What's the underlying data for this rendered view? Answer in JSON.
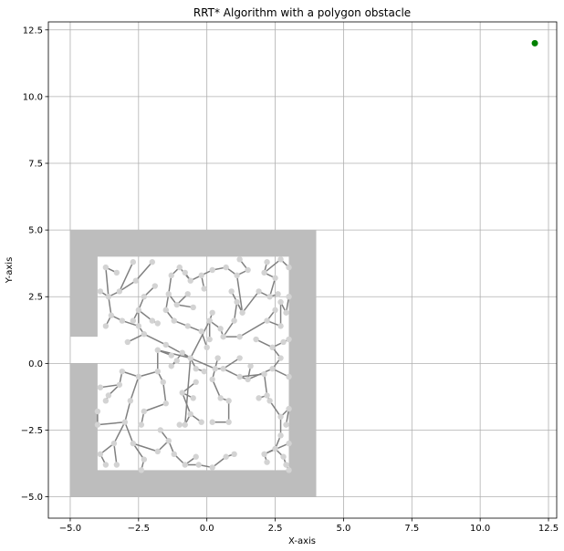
{
  "chart_data": {
    "type": "scatter",
    "title": "RRT* Algorithm with a polygon obstacle",
    "xlabel": "X-axis",
    "ylabel": "Y-axis",
    "xlim": [
      -5.8,
      12.8
    ],
    "ylim": [
      -5.8,
      12.8
    ],
    "xticks": [
      -5.0,
      -2.5,
      0.0,
      2.5,
      5.0,
      7.5,
      10.0,
      12.5
    ],
    "yticks": [
      -5.0,
      -2.5,
      0.0,
      2.5,
      5.0,
      7.5,
      10.0,
      12.5
    ],
    "xtick_labels": [
      "−5.0",
      "−2.5",
      "0.0",
      "2.5",
      "5.0",
      "7.5",
      "10.0",
      "12.5"
    ],
    "ytick_labels": [
      "−5.0",
      "−2.5",
      "0.0",
      "2.5",
      "5.0",
      "7.5",
      "10.0",
      "12.5"
    ],
    "grid": true,
    "colors": {
      "obstacle": "#bdbdbd",
      "edge": "#808080",
      "node": "#d3d3d3",
      "goal": "#008000",
      "grid": "#b0b0b0"
    },
    "obstacle": {
      "outer": [
        [
          -5,
          -5
        ],
        [
          4,
          -5
        ],
        [
          4,
          5
        ],
        [
          -5,
          5
        ]
      ],
      "inner": [
        [
          -4,
          -4
        ],
        [
          3,
          -4
        ],
        [
          3,
          4
        ],
        [
          -4,
          4
        ]
      ],
      "notch": [
        [
          -5,
          0
        ],
        [
          -4,
          0
        ],
        [
          -4,
          1
        ],
        [
          -5,
          1
        ]
      ]
    },
    "goal": [
      12,
      12
    ],
    "nodes": [
      [
        -0.6,
        0.2
      ],
      [
        -1.5,
        0.7
      ],
      [
        -2.3,
        1.1
      ],
      [
        -2.9,
        0.8
      ],
      [
        -2.5,
        1.4
      ],
      [
        -3.1,
        1.6
      ],
      [
        -3.5,
        1.8
      ],
      [
        -3.7,
        1.4
      ],
      [
        -3.6,
        2.5
      ],
      [
        -3.9,
        2.7
      ],
      [
        -3.7,
        3.6
      ],
      [
        -3.2,
        2.7
      ],
      [
        -2.7,
        3.8
      ],
      [
        -2.6,
        3.1
      ],
      [
        -2.0,
        3.8
      ],
      [
        -2.5,
        2.0
      ],
      [
        -2.3,
        2.5
      ],
      [
        -1.9,
        2.9
      ],
      [
        -2.7,
        1.6
      ],
      [
        -2.0,
        1.6
      ],
      [
        -1.8,
        1.5
      ],
      [
        -1.8,
        0.5
      ],
      [
        -1.3,
        0.3
      ],
      [
        -1.8,
        -0.3
      ],
      [
        -1.6,
        -0.7
      ],
      [
        -1.5,
        -1.5
      ],
      [
        -2.3,
        -1.8
      ],
      [
        -2.4,
        -2.3
      ],
      [
        -2.5,
        -0.5
      ],
      [
        -3.1,
        -0.3
      ],
      [
        -3.2,
        -0.8
      ],
      [
        -3.6,
        -1.2
      ],
      [
        -3.7,
        -1.4
      ],
      [
        -3.9,
        -0.9
      ],
      [
        -2.8,
        -1.4
      ],
      [
        -3.0,
        -2.2
      ],
      [
        -3.4,
        -3.0
      ],
      [
        -3.3,
        -3.8
      ],
      [
        -3.9,
        -3.4
      ],
      [
        -3.7,
        -3.8
      ],
      [
        -4.0,
        -2.3
      ],
      [
        -4.0,
        -1.8
      ],
      [
        -2.7,
        -3.0
      ],
      [
        -2.3,
        -3.6
      ],
      [
        -2.4,
        -4.0
      ],
      [
        -1.8,
        -3.3
      ],
      [
        -1.4,
        -2.9
      ],
      [
        -1.2,
        -3.4
      ],
      [
        -0.8,
        -3.8
      ],
      [
        -0.3,
        -3.8
      ],
      [
        0.2,
        -3.9
      ],
      [
        0.7,
        -3.5
      ],
      [
        1.0,
        -3.4
      ],
      [
        -0.4,
        -3.5
      ],
      [
        -0.8,
        -2.3
      ],
      [
        -0.6,
        -1.9
      ],
      [
        -0.2,
        -2.2
      ],
      [
        -0.9,
        -1.1
      ],
      [
        -0.4,
        -0.7
      ],
      [
        0.3,
        -0.2
      ],
      [
        0.4,
        0.2
      ],
      [
        0.6,
        -0.2
      ],
      [
        1.2,
        0.2
      ],
      [
        1.2,
        -0.5
      ],
      [
        1.5,
        -0.6
      ],
      [
        1.6,
        -0.1
      ],
      [
        2.4,
        -0.2
      ],
      [
        2.7,
        0.2
      ],
      [
        2.4,
        0.6
      ],
      [
        2.8,
        0.8
      ],
      [
        3.0,
        0.9
      ],
      [
        0.2,
        -0.6
      ],
      [
        0.5,
        -1.3
      ],
      [
        0.8,
        -1.4
      ],
      [
        0.8,
        -2.2
      ],
      [
        0.2,
        -2.2
      ],
      [
        2.1,
        -0.4
      ],
      [
        2.2,
        -1.2
      ],
      [
        1.9,
        -1.3
      ],
      [
        2.3,
        -1.4
      ],
      [
        2.7,
        -2.0
      ],
      [
        3.0,
        -1.7
      ],
      [
        2.7,
        -2.7
      ],
      [
        2.5,
        -3.2
      ],
      [
        2.1,
        -3.4
      ],
      [
        2.2,
        -3.7
      ],
      [
        2.8,
        -3.5
      ],
      [
        2.9,
        -3.8
      ],
      [
        3.0,
        -4.0
      ],
      [
        0.1,
        1.6
      ],
      [
        0.5,
        1.3
      ],
      [
        0.1,
        0.9
      ],
      [
        0.2,
        1.9
      ],
      [
        0.6,
        1.0
      ],
      [
        1.0,
        1.6
      ],
      [
        1.1,
        2.3
      ],
      [
        1.3,
        1.9
      ],
      [
        1.2,
        1.0
      ],
      [
        2.2,
        1.6
      ],
      [
        2.5,
        2.0
      ],
      [
        2.7,
        1.4
      ],
      [
        2.7,
        2.3
      ],
      [
        2.9,
        1.9
      ],
      [
        3.0,
        2.5
      ],
      [
        1.9,
        2.7
      ],
      [
        2.3,
        2.5
      ],
      [
        2.6,
        2.6
      ],
      [
        2.5,
        3.2
      ],
      [
        2.1,
        3.4
      ],
      [
        2.2,
        3.8
      ],
      [
        2.7,
        3.9
      ],
      [
        3.0,
        3.6
      ],
      [
        1.1,
        3.3
      ],
      [
        1.5,
        3.5
      ],
      [
        1.2,
        3.9
      ],
      [
        0.7,
        3.6
      ],
      [
        0.2,
        3.5
      ],
      [
        -0.2,
        3.3
      ],
      [
        -0.6,
        3.1
      ],
      [
        -0.8,
        3.4
      ],
      [
        -1.0,
        3.6
      ],
      [
        -1.3,
        3.3
      ],
      [
        -1.4,
        2.6
      ],
      [
        -1.1,
        2.2
      ],
      [
        -0.7,
        2.6
      ],
      [
        -0.5,
        2.1
      ],
      [
        -1.5,
        2.0
      ],
      [
        -1.2,
        1.6
      ],
      [
        -0.7,
        1.4
      ],
      [
        -0.2,
        1.2
      ],
      [
        0.0,
        0.6
      ],
      [
        -0.9,
        0.4
      ],
      [
        -1.3,
        -0.1
      ],
      [
        -1.1,
        0.1
      ],
      [
        -0.4,
        -0.2
      ],
      [
        -0.1,
        -0.3
      ],
      [
        1.8,
        0.9
      ],
      [
        3.0,
        -0.5
      ],
      [
        2.9,
        -2.3
      ],
      [
        3.0,
        -3.0
      ],
      [
        -1.7,
        -2.5
      ],
      [
        -0.5,
        -1.3
      ],
      [
        -1.0,
        -2.3
      ],
      [
        -3.3,
        3.4
      ],
      [
        0.9,
        2.7
      ],
      [
        -0.1,
        2.8
      ]
    ],
    "edges": [
      [
        0,
        1
      ],
      [
        1,
        2
      ],
      [
        2,
        3
      ],
      [
        2,
        4
      ],
      [
        4,
        5
      ],
      [
        5,
        6
      ],
      [
        6,
        7
      ],
      [
        6,
        8
      ],
      [
        8,
        9
      ],
      [
        8,
        10
      ],
      [
        8,
        11
      ],
      [
        11,
        12
      ],
      [
        11,
        13
      ],
      [
        13,
        14
      ],
      [
        4,
        15
      ],
      [
        15,
        16
      ],
      [
        16,
        17
      ],
      [
        15,
        18
      ],
      [
        15,
        19
      ],
      [
        19,
        20
      ],
      [
        0,
        21
      ],
      [
        21,
        22
      ],
      [
        21,
        23
      ],
      [
        23,
        24
      ],
      [
        24,
        25
      ],
      [
        25,
        26
      ],
      [
        26,
        27
      ],
      [
        23,
        28
      ],
      [
        28,
        29
      ],
      [
        29,
        30
      ],
      [
        30,
        31
      ],
      [
        31,
        32
      ],
      [
        30,
        33
      ],
      [
        28,
        34
      ],
      [
        34,
        35
      ],
      [
        35,
        36
      ],
      [
        36,
        37
      ],
      [
        36,
        38
      ],
      [
        38,
        39
      ],
      [
        35,
        40
      ],
      [
        40,
        41
      ],
      [
        35,
        42
      ],
      [
        42,
        43
      ],
      [
        43,
        44
      ],
      [
        42,
        45
      ],
      [
        45,
        46
      ],
      [
        46,
        47
      ],
      [
        47,
        48
      ],
      [
        48,
        49
      ],
      [
        49,
        50
      ],
      [
        50,
        51
      ],
      [
        51,
        52
      ],
      [
        48,
        53
      ],
      [
        0,
        54
      ],
      [
        54,
        55
      ],
      [
        55,
        56
      ],
      [
        55,
        57
      ],
      [
        57,
        58
      ],
      [
        0,
        59
      ],
      [
        59,
        60
      ],
      [
        59,
        61
      ],
      [
        61,
        62
      ],
      [
        61,
        63
      ],
      [
        63,
        64
      ],
      [
        64,
        65
      ],
      [
        64,
        66
      ],
      [
        66,
        67
      ],
      [
        67,
        68
      ],
      [
        68,
        69
      ],
      [
        69,
        70
      ],
      [
        59,
        71
      ],
      [
        71,
        72
      ],
      [
        72,
        73
      ],
      [
        73,
        74
      ],
      [
        74,
        75
      ],
      [
        63,
        76
      ],
      [
        76,
        77
      ],
      [
        77,
        78
      ],
      [
        77,
        79
      ],
      [
        79,
        80
      ],
      [
        80,
        81
      ],
      [
        80,
        82
      ],
      [
        82,
        83
      ],
      [
        83,
        84
      ],
      [
        84,
        85
      ],
      [
        83,
        86
      ],
      [
        86,
        87
      ],
      [
        87,
        88
      ],
      [
        0,
        89
      ],
      [
        89,
        90
      ],
      [
        89,
        91
      ],
      [
        89,
        92
      ],
      [
        90,
        93
      ],
      [
        93,
        94
      ],
      [
        94,
        95
      ],
      [
        95,
        96
      ],
      [
        93,
        97
      ],
      [
        97,
        98
      ],
      [
        98,
        99
      ],
      [
        98,
        100
      ],
      [
        100,
        101
      ],
      [
        101,
        102
      ],
      [
        102,
        103
      ],
      [
        96,
        104
      ],
      [
        104,
        105
      ],
      [
        105,
        106
      ],
      [
        105,
        107
      ],
      [
        107,
        108
      ],
      [
        108,
        109
      ],
      [
        108,
        110
      ],
      [
        110,
        111
      ],
      [
        96,
        112
      ],
      [
        112,
        113
      ],
      [
        113,
        114
      ],
      [
        112,
        115
      ],
      [
        115,
        116
      ],
      [
        116,
        117
      ],
      [
        117,
        118
      ],
      [
        118,
        119
      ],
      [
        118,
        120
      ],
      [
        120,
        121
      ],
      [
        121,
        122
      ],
      [
        122,
        123
      ],
      [
        123,
        124
      ],
      [
        123,
        125
      ],
      [
        122,
        126
      ],
      [
        126,
        127
      ],
      [
        127,
        128
      ],
      [
        128,
        129
      ],
      [
        129,
        130
      ],
      [
        0,
        131
      ],
      [
        131,
        132
      ],
      [
        132,
        133
      ],
      [
        0,
        134
      ],
      [
        134,
        135
      ],
      [
        68,
        136
      ],
      [
        66,
        137
      ],
      [
        81,
        138
      ],
      [
        84,
        139
      ],
      [
        46,
        140
      ],
      [
        57,
        141
      ],
      [
        54,
        142
      ],
      [
        10,
        143
      ],
      [
        96,
        144
      ],
      [
        117,
        145
      ]
    ]
  }
}
